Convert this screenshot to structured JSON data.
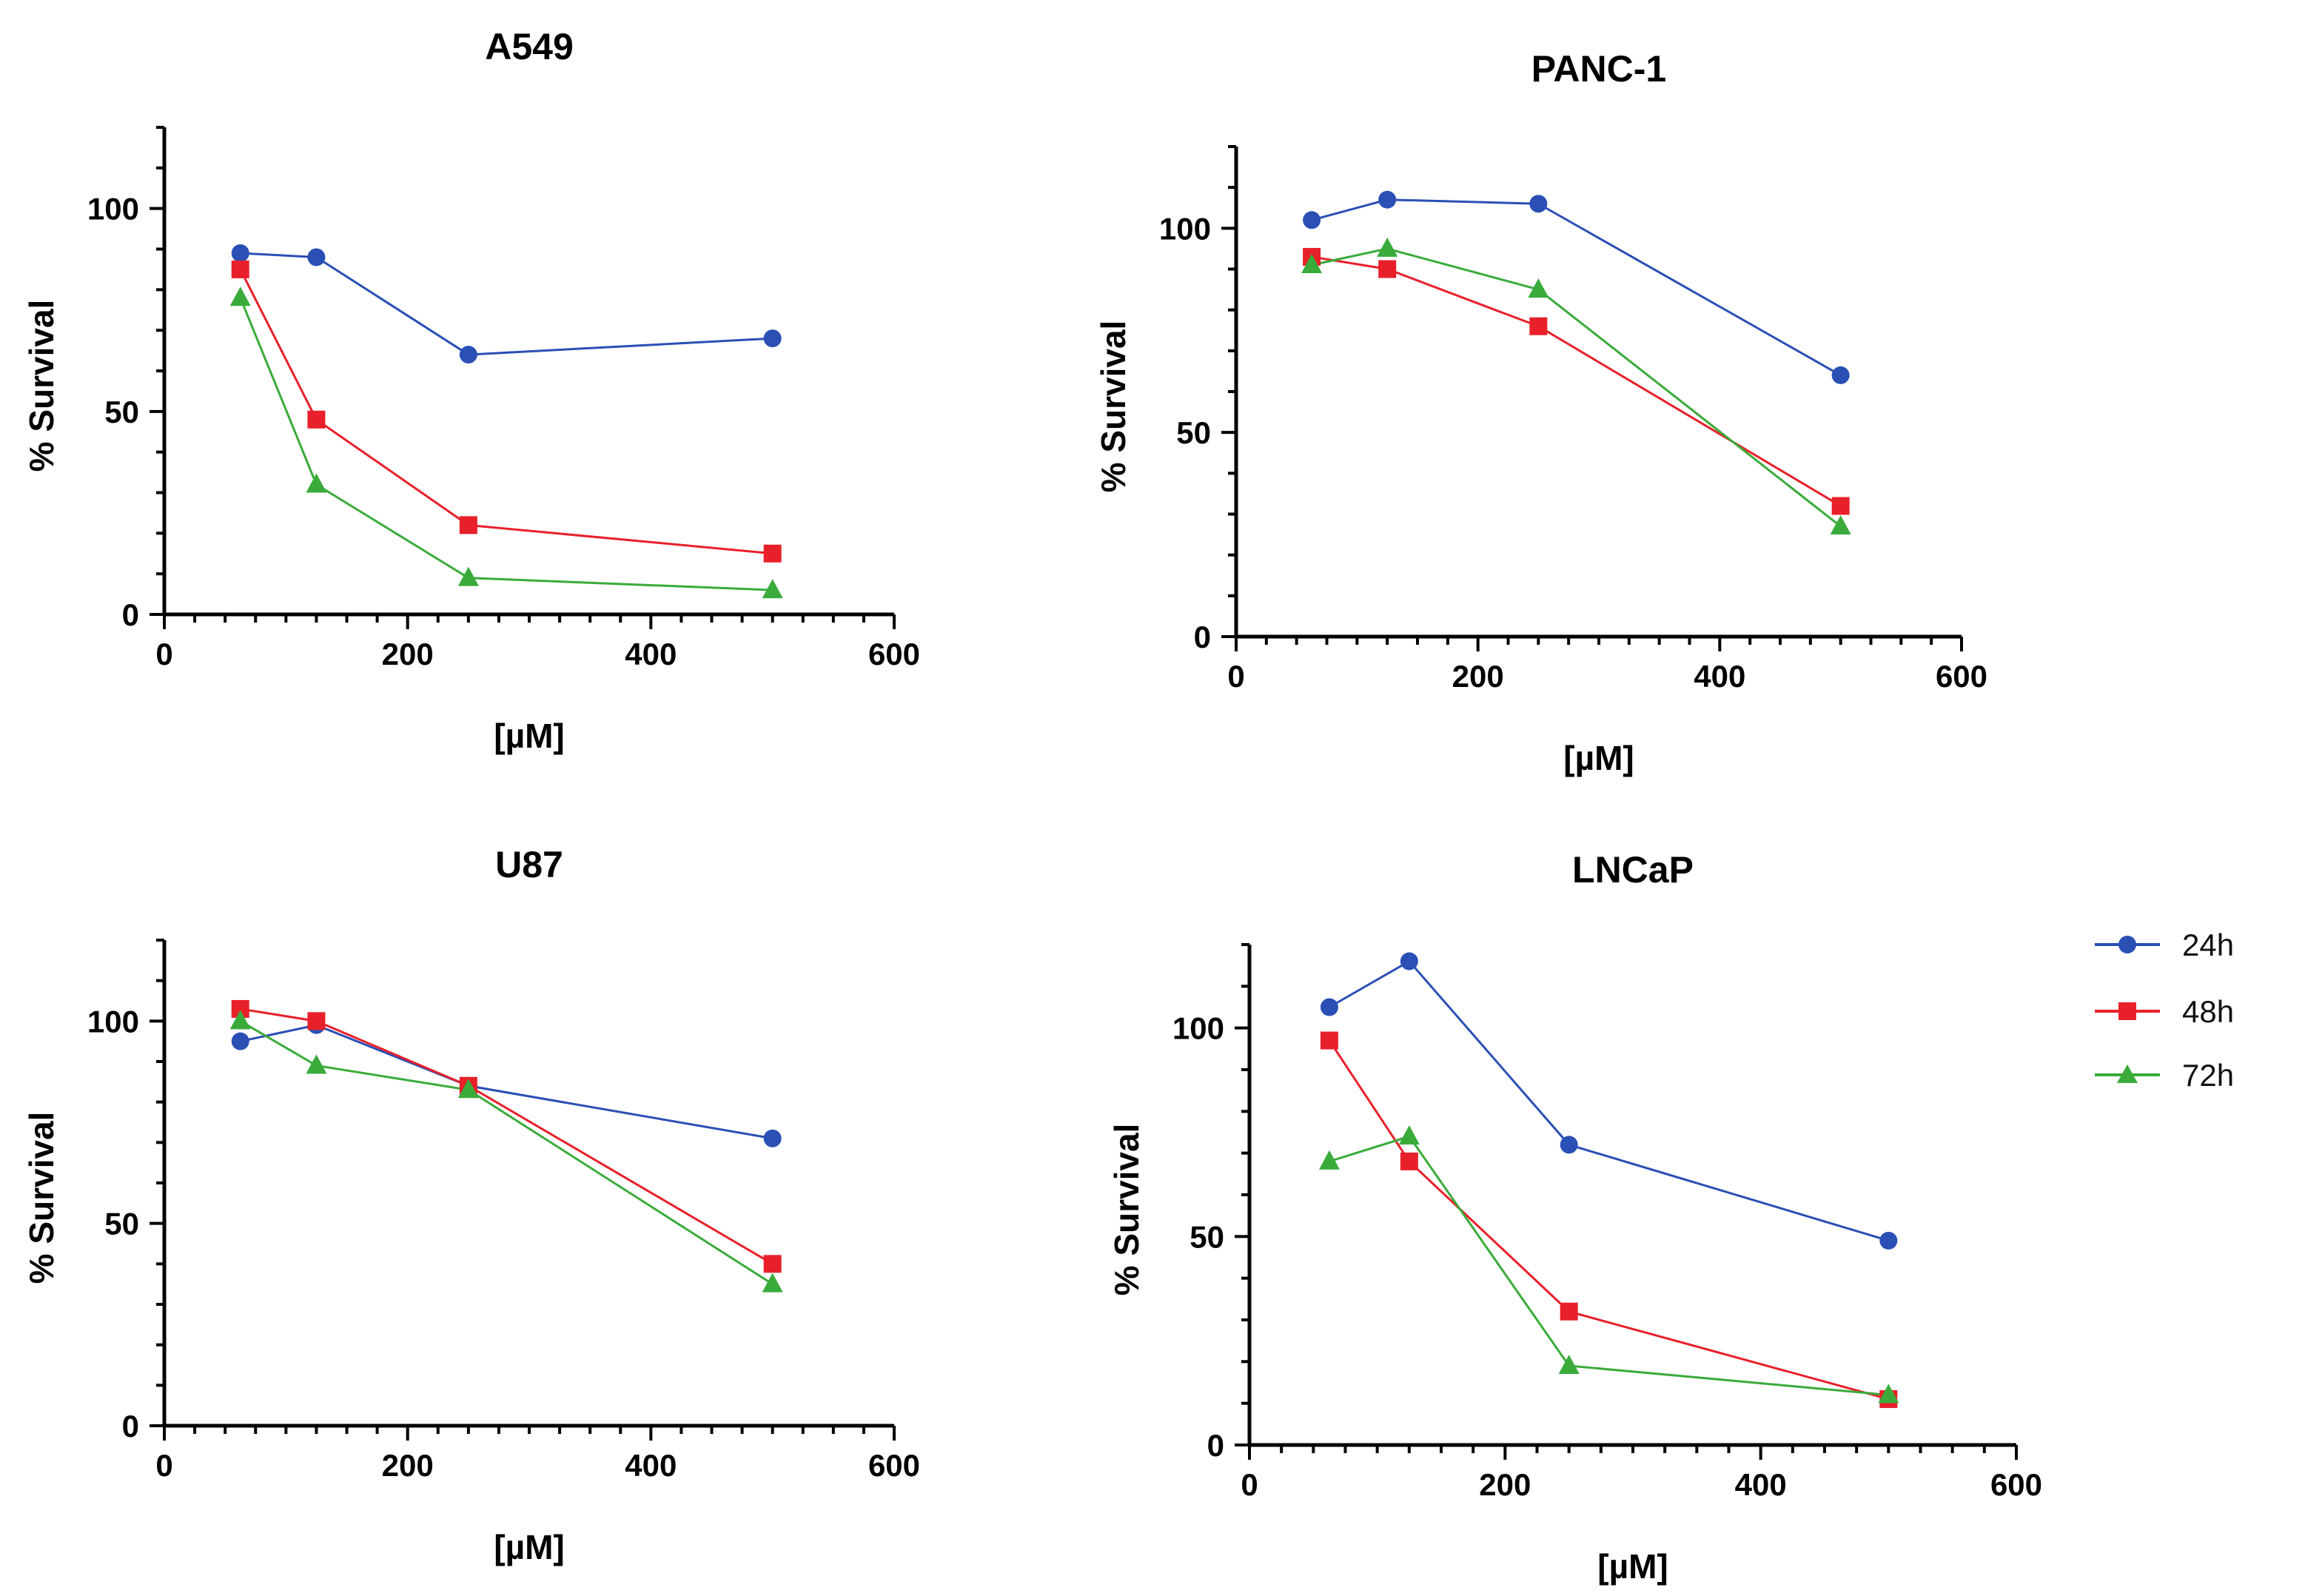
{
  "legend": [
    {
      "name": "24h",
      "color": "#2a4fb5",
      "marker": "circle"
    },
    {
      "name": "48h",
      "color": "#e8202a",
      "marker": "square"
    },
    {
      "name": "72h",
      "color": "#3aab3a",
      "marker": "triangle"
    }
  ],
  "chart_data": [
    {
      "type": "line",
      "title": "A549",
      "xlabel": "[µM]",
      "ylabel": "% Survival",
      "xlim": [
        0,
        600
      ],
      "ylim": [
        0,
        120
      ],
      "xticks": [
        0,
        200,
        400,
        600
      ],
      "yticks": [
        0,
        50,
        100
      ],
      "x": [
        62.5,
        125,
        250,
        500
      ],
      "series": [
        {
          "name": "24h",
          "values": [
            89,
            88,
            64,
            68
          ]
        },
        {
          "name": "48h",
          "values": [
            85,
            48,
            22,
            15
          ]
        },
        {
          "name": "72h",
          "values": [
            78,
            32,
            9,
            6
          ]
        }
      ]
    },
    {
      "type": "line",
      "title": "PANC-1",
      "xlabel": "[µM]",
      "ylabel": "% Survival",
      "xlim": [
        0,
        600
      ],
      "ylim": [
        0,
        120
      ],
      "xticks": [
        0,
        200,
        400,
        600
      ],
      "yticks": [
        0,
        50,
        100
      ],
      "x": [
        62.5,
        125,
        250,
        500
      ],
      "series": [
        {
          "name": "24h",
          "values": [
            102,
            107,
            106,
            64
          ]
        },
        {
          "name": "48h",
          "values": [
            93,
            90,
            76,
            32
          ]
        },
        {
          "name": "72h",
          "values": [
            91,
            95,
            85,
            27
          ]
        }
      ]
    },
    {
      "type": "line",
      "title": "U87",
      "xlabel": "[µM]",
      "ylabel": "% Survival",
      "xlim": [
        0,
        600
      ],
      "ylim": [
        0,
        120
      ],
      "xticks": [
        0,
        200,
        400,
        600
      ],
      "yticks": [
        0,
        50,
        100
      ],
      "x": [
        62.5,
        125,
        250,
        500
      ],
      "series": [
        {
          "name": "24h",
          "values": [
            95,
            99,
            84,
            71
          ]
        },
        {
          "name": "48h",
          "values": [
            103,
            100,
            84,
            40
          ]
        },
        {
          "name": "72h",
          "values": [
            100,
            89,
            83,
            35
          ]
        }
      ]
    },
    {
      "type": "line",
      "title": "LNCaP",
      "xlabel": "[µM]",
      "ylabel": "% Survival",
      "xlim": [
        0,
        600
      ],
      "ylim": [
        0,
        120
      ],
      "xticks": [
        0,
        200,
        400,
        600
      ],
      "yticks": [
        0,
        50,
        100
      ],
      "x": [
        62.5,
        125,
        250,
        500
      ],
      "series": [
        {
          "name": "24h",
          "values": [
            105,
            116,
            72,
            49
          ]
        },
        {
          "name": "48h",
          "values": [
            97,
            68,
            32,
            11
          ]
        },
        {
          "name": "72h",
          "values": [
            68,
            74,
            19,
            12
          ]
        }
      ]
    }
  ]
}
